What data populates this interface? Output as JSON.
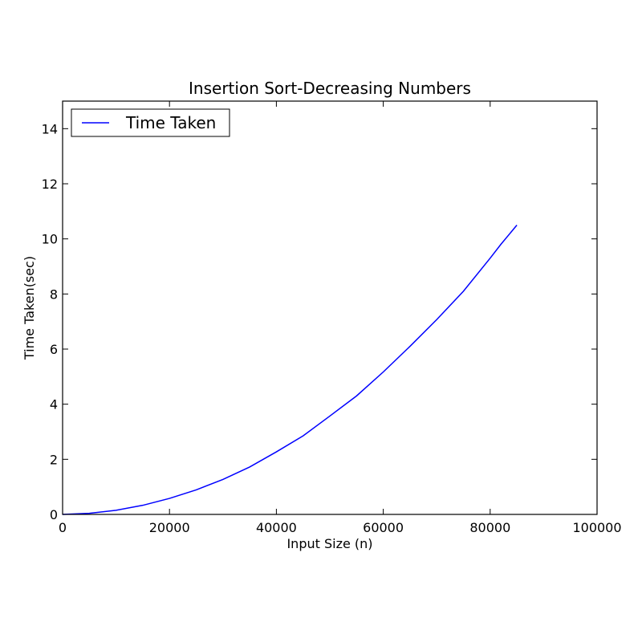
{
  "chart_data": {
    "type": "line",
    "title": "Insertion Sort-Decreasing Numbers",
    "xlabel": "Input Size (n)",
    "ylabel": "Time Taken(sec)",
    "xlim": [
      0,
      100000
    ],
    "ylim": [
      0,
      15
    ],
    "x_ticks": [
      0,
      20000,
      40000,
      60000,
      80000,
      100000
    ],
    "y_ticks": [
      0,
      2,
      4,
      6,
      8,
      10,
      12,
      14
    ],
    "grid": false,
    "legend_position": "top-left",
    "series": [
      {
        "name": "Time Taken",
        "color": "#0000ff",
        "x": [
          0,
          5000,
          10000,
          15000,
          20000,
          25000,
          30000,
          35000,
          40000,
          45000,
          50000,
          55000,
          60000,
          65000,
          70000,
          75000,
          80000,
          82000,
          85000
        ],
        "y": [
          0,
          0.04,
          0.15,
          0.33,
          0.58,
          0.89,
          1.27,
          1.72,
          2.27,
          2.85,
          3.57,
          4.3,
          5.17,
          6.1,
          7.07,
          8.1,
          9.3,
          9.8,
          10.5
        ]
      }
    ]
  }
}
